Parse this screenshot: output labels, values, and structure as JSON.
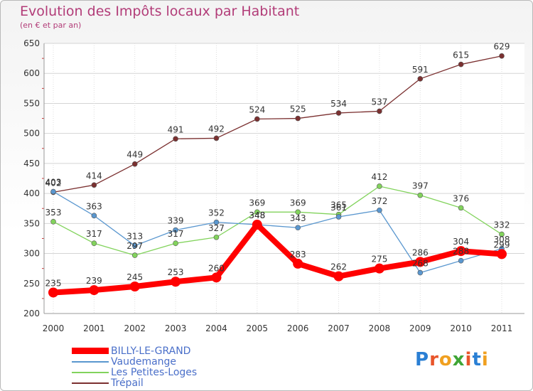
{
  "header": {
    "title": "Evolution des Impôts locaux par Habitant",
    "subtitle": "(en € et par an)"
  },
  "logo": {
    "letters": [
      "P",
      "r",
      "o",
      "x",
      "i",
      "t",
      "i"
    ],
    "colors": [
      "#2a7fd4",
      "#e8552a",
      "#f0a020",
      "#3fa535",
      "#e8552a",
      "#2a7fd4",
      "#f0a020"
    ]
  },
  "chart_data": {
    "type": "line",
    "x": [
      "2000",
      "2001",
      "2002",
      "2003",
      "2004",
      "2005",
      "2006",
      "2007",
      "2008",
      "2009",
      "2010",
      "2011"
    ],
    "ylim": [
      200,
      650
    ],
    "yticks": [
      200,
      250,
      300,
      350,
      400,
      450,
      500,
      550,
      600,
      650
    ],
    "grid": true,
    "legend_position": "bottom-left",
    "series": [
      {
        "name": "Trépail",
        "color": "#7b3030",
        "values": [
          402,
          414,
          449,
          491,
          492,
          524,
          525,
          534,
          537,
          591,
          615,
          629
        ]
      },
      {
        "name": "Les Petites-Loges",
        "color": "#82d35c",
        "values": [
          353,
          317,
          297,
          317,
          327,
          369,
          369,
          365,
          412,
          397,
          376,
          332
        ]
      },
      {
        "name": "Vaudemange",
        "color": "#5a97cf",
        "values": [
          403,
          363,
          313,
          339,
          352,
          348,
          343,
          361,
          372,
          268,
          288,
          308
        ]
      },
      {
        "name": "BILLY-LE-GRAND",
        "color": "#ff0000",
        "values": [
          235,
          239,
          245,
          253,
          260,
          348,
          283,
          262,
          275,
          286,
          304,
          299
        ]
      }
    ],
    "legend_order": [
      "BILLY-LE-GRAND",
      "Vaudemange",
      "Les Petites-Loges",
      "Trépail"
    ]
  }
}
